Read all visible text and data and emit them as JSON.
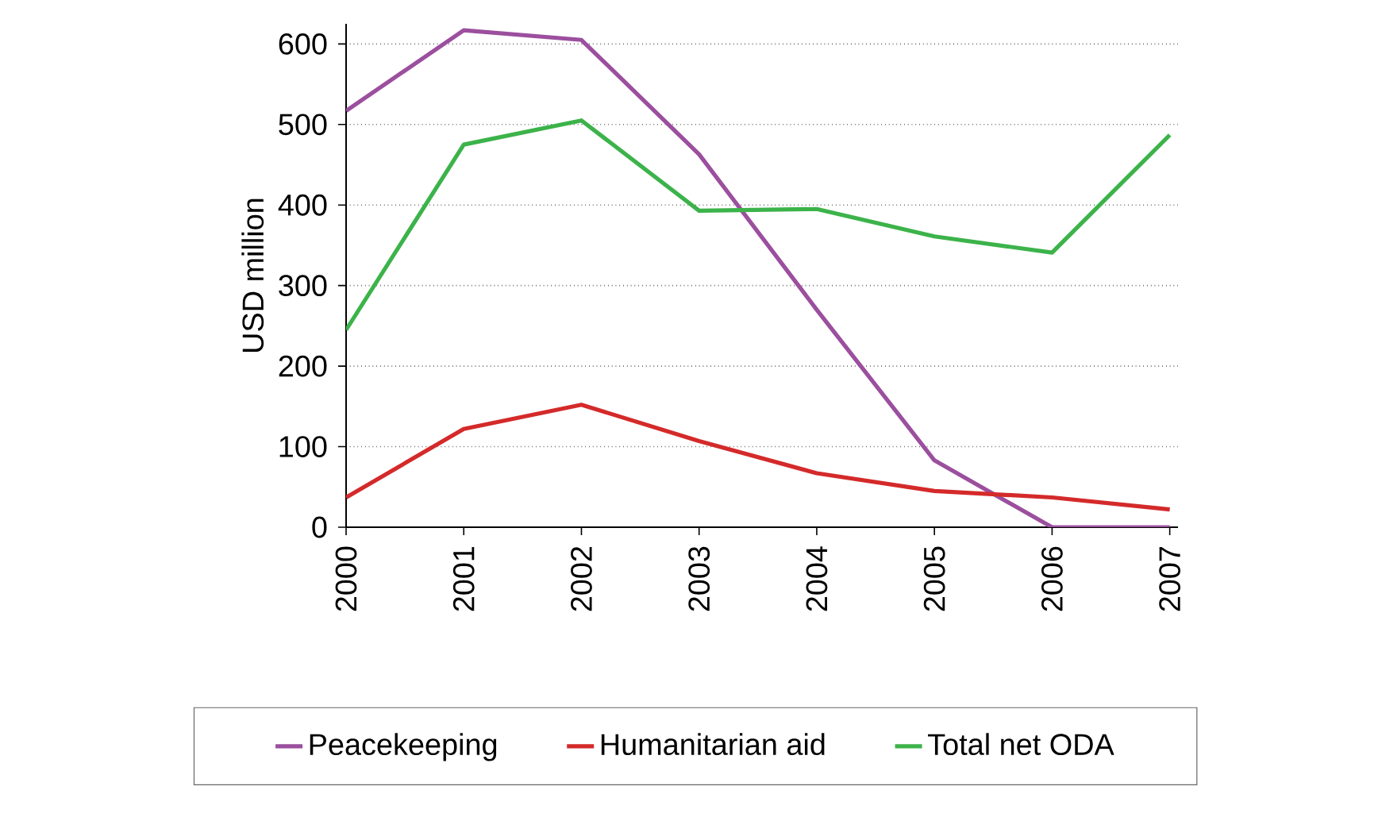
{
  "chart_data": {
    "type": "line",
    "ylabel": "USD million",
    "categories": [
      "2000",
      "2001",
      "2002",
      "2003",
      "2004",
      "2005",
      "2006",
      "2007"
    ],
    "series": [
      {
        "name": "Peacekeeping",
        "color": "#9b4f9e",
        "values": [
          517,
          617,
          605,
          463,
          270,
          83,
          0,
          0
        ]
      },
      {
        "name": "Humanitarian aid",
        "color": "#d42a2a",
        "values": [
          37,
          122,
          152,
          107,
          67,
          45,
          37,
          22
        ]
      },
      {
        "name": "Total net ODA",
        "color": "#3cb34a",
        "values": [
          245,
          475,
          505,
          393,
          395,
          361,
          341,
          487
        ]
      }
    ],
    "ylim": [
      0,
      625
    ],
    "yticks": [
      0,
      100,
      200,
      300,
      400,
      500,
      600
    ],
    "grid": "y",
    "legend": "bottom"
  }
}
